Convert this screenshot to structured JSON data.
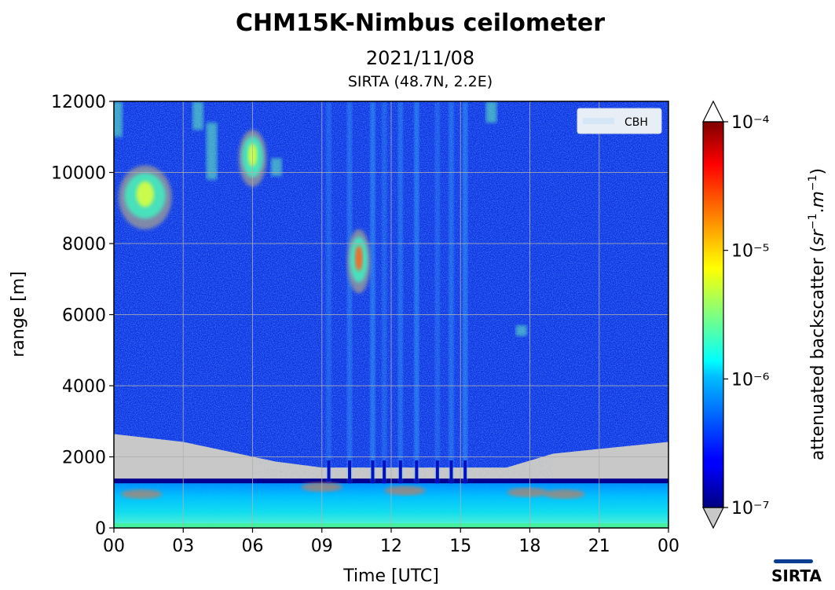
{
  "chart_data": {
    "type": "heatmap",
    "title": "CHM15K-Nimbus ceilometer",
    "subtitle": "2021/11/08",
    "site": "SIRTA (48.7N, 2.2E)",
    "xlabel": "Time [UTC]",
    "ylabel": "range [m]",
    "x_tick_labels": [
      "00",
      "03",
      "06",
      "09",
      "12",
      "15",
      "18",
      "21",
      "00"
    ],
    "x_range_hours": [
      0,
      24
    ],
    "x_tick_hours": [
      0,
      3,
      6,
      9,
      12,
      15,
      18,
      21,
      24
    ],
    "ylim": [
      0,
      12000
    ],
    "y_ticks": [
      0,
      2000,
      4000,
      6000,
      8000,
      10000,
      12000
    ],
    "y_tick_labels": [
      "0",
      "2000",
      "4000",
      "6000",
      "8000",
      "10000",
      "12000"
    ],
    "grid": true,
    "legend": {
      "entries": [
        "CBH"
      ],
      "placement": "top-right"
    },
    "colorbar": {
      "label": "attenuated backscatter (sr⁻¹.m⁻¹)",
      "scale": "log",
      "range": [
        1e-07,
        0.0001
      ],
      "tick_values": [
        1e-07,
        1e-06,
        1e-05,
        0.0001
      ],
      "tick_labels": [
        "10⁻⁷",
        "10⁻⁶",
        "10⁻⁵",
        "10⁻⁴"
      ],
      "colormap": "jet",
      "under_color": "#c8c8c8",
      "over_color": "#ffffff",
      "extend": "both"
    },
    "features": {
      "noise_color": "#1030e0",
      "no_signal_color": "#c8c8c8",
      "boundary_layer_top_m": 1300,
      "low_signal_gray_top_m": 2200,
      "cirrus": [
        {
          "t_start": 0.2,
          "t_end": 2.5,
          "z_bottom": 8400,
          "z_top": 10200
        },
        {
          "t_start": 5.4,
          "t_end": 6.6,
          "z_bottom": 9600,
          "z_top": 11200
        },
        {
          "t_start": 10.1,
          "t_end": 11.1,
          "z_bottom": 6600,
          "z_top": 8400
        }
      ]
    }
  },
  "logo": {
    "text": "SIRTA"
  }
}
